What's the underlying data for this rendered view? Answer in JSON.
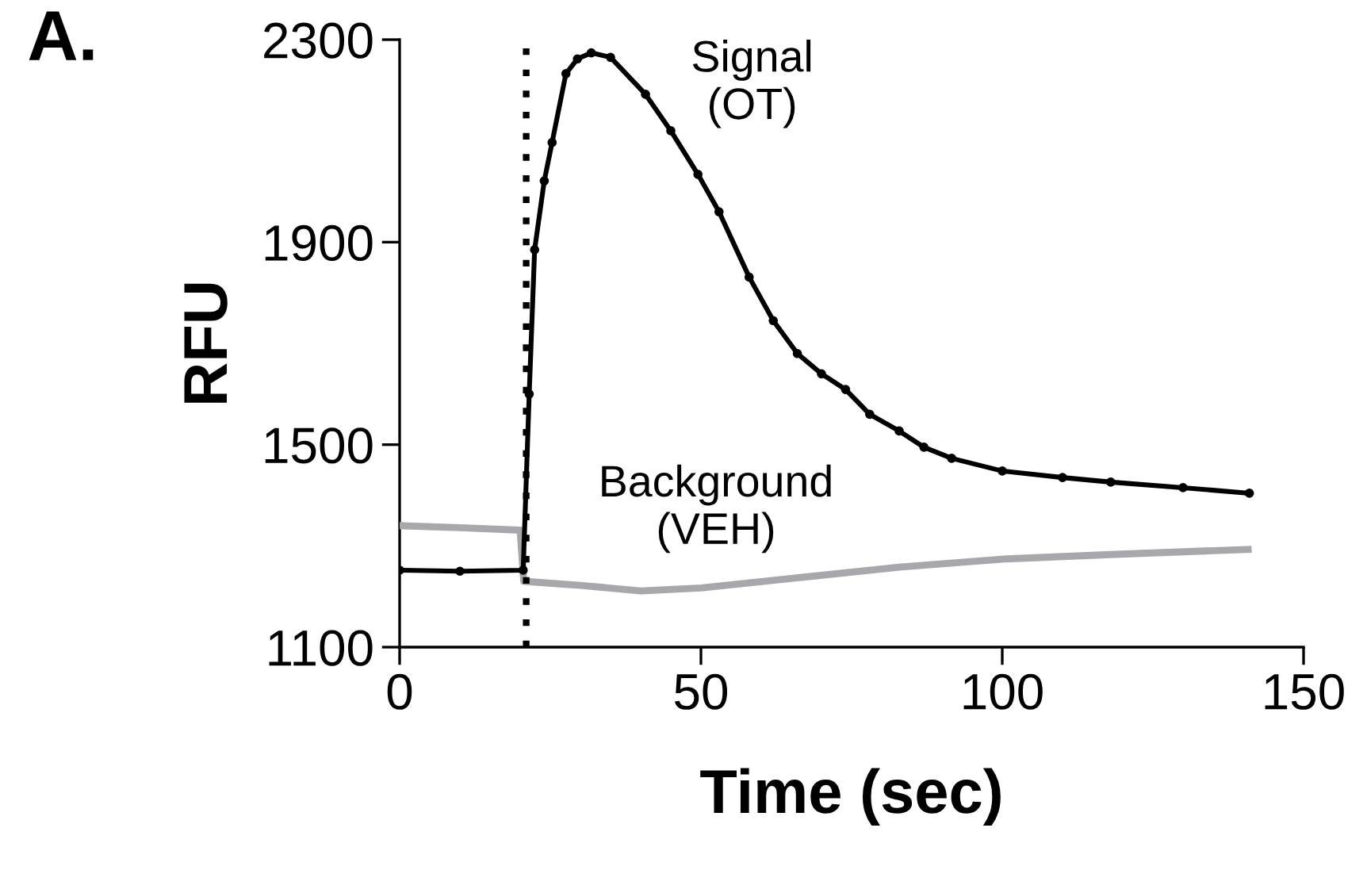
{
  "chart_data": {
    "type": "line",
    "title": "A.",
    "xlabel": "Time (sec)",
    "ylabel": "RFU",
    "xlim": [
      0,
      150
    ],
    "xticks": [
      0,
      50,
      100,
      150
    ],
    "ylim": [
      1100,
      2300
    ],
    "yticks": [
      1100,
      1500,
      1900,
      2300
    ],
    "grid": false,
    "legend": false,
    "series": [
      {
        "name": "Signal\n(OT)",
        "color": "#000000",
        "marker": "circle",
        "x": [
          0,
          10,
          20.5,
          21.5,
          22.4,
          24,
          25.3,
          27.6,
          29.5,
          31.8,
          35,
          40.8,
          45,
          49.5,
          53,
          58,
          62,
          66,
          70,
          74,
          78,
          82.9,
          87,
          91.6,
          100,
          110,
          118,
          130,
          141
        ],
        "values": [
          1252,
          1250,
          1252,
          1600,
          1885,
          2021,
          2097,
          2233,
          2262,
          2274,
          2265,
          2192,
          2120,
          2034,
          1960,
          1831,
          1745,
          1680,
          1640,
          1609,
          1560,
          1527,
          1495,
          1473,
          1448,
          1435,
          1426,
          1415,
          1404
        ]
      },
      {
        "name": "Background\n(VEH)",
        "color": "#a8a8ac",
        "marker": "none",
        "x": [
          0,
          10,
          20,
          20.6,
          30,
          40,
          50,
          65.3,
          82.9,
          100.3,
          117.9,
          140.8
        ],
        "values": [
          1340,
          1336,
          1331,
          1230,
          1222,
          1211,
          1217,
          1236,
          1258,
          1274,
          1283,
          1293
        ]
      }
    ],
    "ref_lines": [
      {
        "axis": "x",
        "value": 21,
        "color": "#000000",
        "line_style": "dotted"
      }
    ]
  }
}
